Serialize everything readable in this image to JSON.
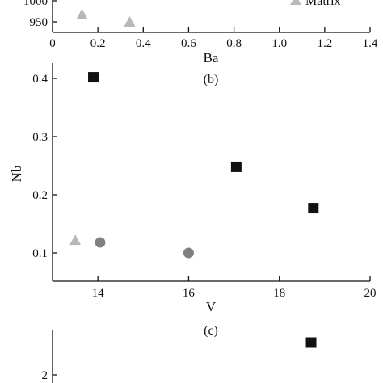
{
  "colors": {
    "square": "#111111",
    "circle": "#808080",
    "triangle": "#b8b8b8",
    "axis": "#111111"
  },
  "chart_data": [
    {
      "type": "scatter",
      "panel": "a",
      "xlabel": "Ba",
      "ylabel": "",
      "xlim": [
        0,
        1.4
      ],
      "ylim": [
        925,
        1025
      ],
      "x_ticks": [
        "0",
        "0.2",
        "0.4",
        "0.6",
        "0.8",
        "1.0",
        "1.2",
        "1.4"
      ],
      "x_tick_values": [
        0,
        0.2,
        0.4,
        0.6,
        0.8,
        1.0,
        1.2,
        1.4
      ],
      "y_ticks": [
        "950",
        "1000"
      ],
      "y_tick_values": [
        950,
        1000
      ],
      "legend": {
        "label": "Matrix",
        "marker": "triangle",
        "placement": "top-right"
      },
      "series": [
        {
          "marker": "triangle",
          "x": [
            0.13,
            0.34
          ],
          "y": [
            968,
            950
          ]
        }
      ]
    },
    {
      "type": "scatter",
      "panel": "b",
      "panel_label": "(b)",
      "xlabel": "V",
      "ylabel": "Nb",
      "xlim": [
        13,
        20
      ],
      "ylim": [
        0.05,
        0.45
      ],
      "x_ticks": [
        "14",
        "16",
        "18",
        "20"
      ],
      "x_tick_values": [
        14,
        16,
        18,
        20
      ],
      "y_ticks": [
        "0.1",
        "0.2",
        "0.3",
        "0.4"
      ],
      "y_tick_values": [
        0.1,
        0.2,
        0.3,
        0.4
      ],
      "series": [
        {
          "marker": "square",
          "x": [
            13.9,
            17.05,
            18.75
          ],
          "y": [
            0.402,
            0.248,
            0.177
          ]
        },
        {
          "marker": "circle",
          "x": [
            14.05,
            16.0
          ],
          "y": [
            0.118,
            0.1
          ]
        },
        {
          "marker": "triangle",
          "x": [
            13.5
          ],
          "y": [
            0.122
          ]
        }
      ]
    },
    {
      "type": "scatter",
      "panel": "c",
      "panel_label": "(c)",
      "xlabel": "",
      "ylabel": "",
      "xlim": [
        13,
        20
      ],
      "y_ticks": [
        "2"
      ],
      "y_tick_values": [
        2
      ],
      "ylim": [
        1.9,
        3.5
      ],
      "series": [
        {
          "marker": "square",
          "x": [
            18.7
          ],
          "y": [
            3.1
          ]
        }
      ]
    }
  ]
}
